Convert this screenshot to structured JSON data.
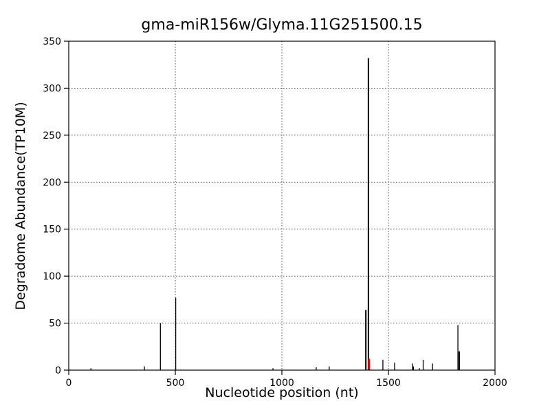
{
  "chart_data": {
    "type": "stem",
    "title": "gma-miR156w/Glyma.11G251500.15",
    "xlabel": "Nucleotide position (nt)",
    "ylabel": "Degradome Abundance(TP10M)",
    "xlim": [
      0,
      2000
    ],
    "ylim": [
      0,
      350
    ],
    "xticks": [
      0,
      500,
      1000,
      1500,
      2000
    ],
    "yticks": [
      0,
      50,
      100,
      150,
      200,
      250,
      300,
      350
    ],
    "grid": true,
    "grid_style": "dotted",
    "legend": "none",
    "colors": {
      "spike": "#000000",
      "highlight": "#ff0000",
      "grid": "#3a3a3a",
      "frame": "#000000"
    },
    "points": [
      {
        "x": 104,
        "y": 2
      },
      {
        "x": 355,
        "y": 4
      },
      {
        "x": 430,
        "y": 50
      },
      {
        "x": 502,
        "y": 77
      },
      {
        "x": 958,
        "y": 2
      },
      {
        "x": 1161,
        "y": 3
      },
      {
        "x": 1222,
        "y": 4
      },
      {
        "x": 1394,
        "y": 64,
        "w": 2
      },
      {
        "x": 1406,
        "y": 332,
        "w": 2
      },
      {
        "x": 1409,
        "y": 12,
        "color": "#ff0000",
        "w": 3
      },
      {
        "x": 1474,
        "y": 11
      },
      {
        "x": 1529,
        "y": 8
      },
      {
        "x": 1613,
        "y": 7
      },
      {
        "x": 1617,
        "y": 4
      },
      {
        "x": 1645,
        "y": 2
      },
      {
        "x": 1663,
        "y": 11
      },
      {
        "x": 1707,
        "y": 7
      },
      {
        "x": 1826,
        "y": 48
      },
      {
        "x": 1832,
        "y": 20,
        "w": 2
      }
    ]
  }
}
